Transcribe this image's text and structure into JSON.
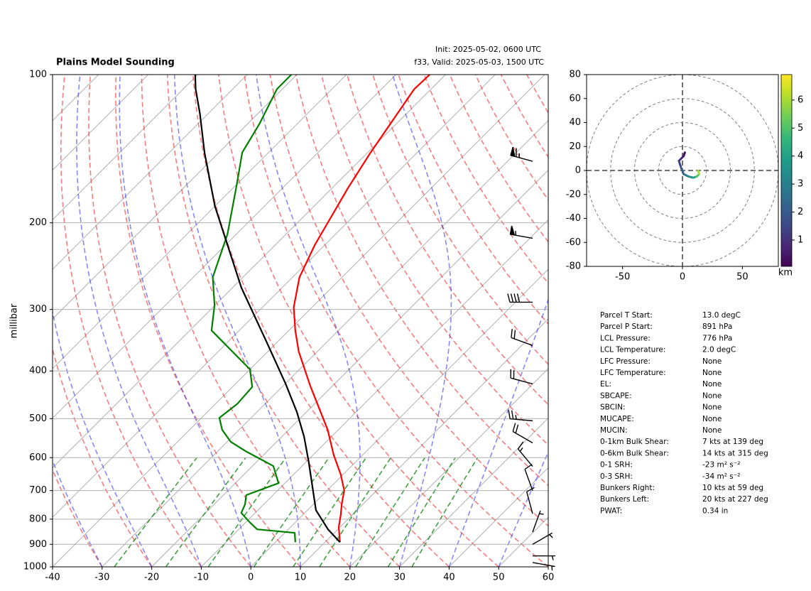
{
  "chart_data": [
    {
      "type": "skewt",
      "title": "Plains Model Sounding",
      "subtitle": [
        "Init: 2025-05-02, 0600 UTC",
        "f33, Valid: 2025-05-03, 1500 UTC"
      ],
      "ylabel": "millibar",
      "xlim": [
        -40,
        60
      ],
      "xticks": [
        -40,
        -30,
        -20,
        -10,
        0,
        10,
        20,
        30,
        40,
        50,
        60
      ],
      "ylim": [
        1000,
        100
      ],
      "yticks": [
        100,
        200,
        300,
        400,
        500,
        600,
        700,
        800,
        900,
        1000
      ],
      "log_y": true,
      "grid": true,
      "series": [
        {
          "color": "#ff0000",
          "pressure": [
            891,
            830,
            785,
            746,
            699,
            649,
            592,
            527,
            429,
            365,
            331,
            297,
            258,
            222,
            170,
            145,
            107,
            100
          ],
          "values": [
            13.0,
            9.7,
            7.7,
            5.7,
            3.4,
            -0.5,
            -5.9,
            -12.1,
            -24.5,
            -33.8,
            -38.7,
            -43.7,
            -48.6,
            -52.0,
            -56.8,
            -59.3,
            -63.4,
            -63.2
          ]
        },
        {
          "color": "#008000",
          "pressure": [
            891,
            853,
            839,
            812,
            777,
            746,
            715,
            676,
            624,
            582,
            557,
            527,
            498,
            466,
            431,
            397,
            331,
            294,
            258,
            211,
            167,
            144,
            126,
            107,
            100
          ],
          "values": [
            4.0,
            2.0,
            -6.3,
            -9.2,
            -12.8,
            -13.8,
            -15.4,
            -11.3,
            -15.8,
            -24.4,
            -29.3,
            -33.4,
            -36.4,
            -35.6,
            -36.0,
            -40.0,
            -55.6,
            -60.1,
            -66.1,
            -71.8,
            -80.0,
            -85.3,
            -87.6,
            -91.1,
            -91.1
          ]
        },
        {
          "color": "#000000",
          "pressure": [
            891,
            839,
            767,
            699,
            612,
            544,
            485,
            424,
            348,
            271,
            185,
            144,
            120,
            107,
            100
          ],
          "values": [
            13.0,
            8.0,
            1.7,
            -2.9,
            -9.5,
            -15.5,
            -21.9,
            -30.0,
            -42.4,
            -58.2,
            -80.0,
            -92.9,
            -101.7,
            -107.5,
            -110.5
          ]
        }
      ],
      "wind": {
        "pressure": [
          150,
          215,
          290,
          355,
          425,
          505,
          560,
          625,
          700,
          780,
          850,
          900,
          950,
          980
        ],
        "speed": [
          65,
          55,
          40,
          20,
          20,
          25,
          20,
          15,
          10,
          10,
          8,
          8,
          8,
          8
        ],
        "direction": [
          285,
          280,
          270,
          290,
          285,
          275,
          300,
          320,
          340,
          345,
          20,
          60,
          90,
          100
        ]
      }
    },
    {
      "type": "hodograph",
      "xlim": [
        -80,
        80
      ],
      "xticks": [
        -50,
        0,
        50
      ],
      "ylim": [
        -80,
        80
      ],
      "yticks": [
        -80,
        -60,
        -40,
        -20,
        0,
        20,
        40,
        60,
        80
      ],
      "u": [
        2,
        1,
        -1,
        -3,
        -1,
        1,
        5,
        9,
        12,
        14,
        13
      ],
      "v": [
        15,
        12,
        10,
        8,
        2,
        -3,
        -5,
        -6,
        -5,
        -3,
        0
      ],
      "height": [
        0.1,
        0.4,
        0.8,
        1.2,
        1.8,
        2.4,
        3.0,
        3.8,
        4.6,
        5.5,
        6.5
      ],
      "colorbar": {
        "label": "km",
        "lim": [
          0.06,
          6.91
        ],
        "ticks": [
          1,
          2,
          3,
          4,
          5,
          6
        ]
      }
    }
  ],
  "parameters": {
    "rows": [
      [
        "Parcel T Start:",
        "13.0 degC"
      ],
      [
        "Parcel P Start:",
        "891 hPa"
      ],
      [
        "LCL Pressure:",
        "776 hPa"
      ],
      [
        "LCL Temperature:",
        "2.0 degC"
      ],
      [
        "LFC Pressure:",
        "None"
      ],
      [
        "LFC Temperature:",
        "None"
      ],
      [
        "EL:",
        "None"
      ],
      [
        "SBCAPE:",
        "None"
      ],
      [
        "SBCIN:",
        "None"
      ],
      [
        "MUCAPE:",
        "None"
      ],
      [
        "MUCIN:",
        "None"
      ],
      [
        "0-1km Bulk Shear:",
        "7 kts at 139 deg"
      ],
      [
        "0-6km Bulk Shear:",
        "14 kts at 315 deg"
      ],
      [
        "0-1 SRH:",
        "-23 m² s⁻²"
      ],
      [
        "0-3 SRH:",
        "-34 m² s⁻²"
      ],
      [
        "Bunkers Right:",
        "10 kts at 59 deg"
      ],
      [
        "Bunkers Left:",
        "20 kts at 227 deg"
      ],
      [
        "PWAT:",
        "0.34 in"
      ]
    ]
  }
}
